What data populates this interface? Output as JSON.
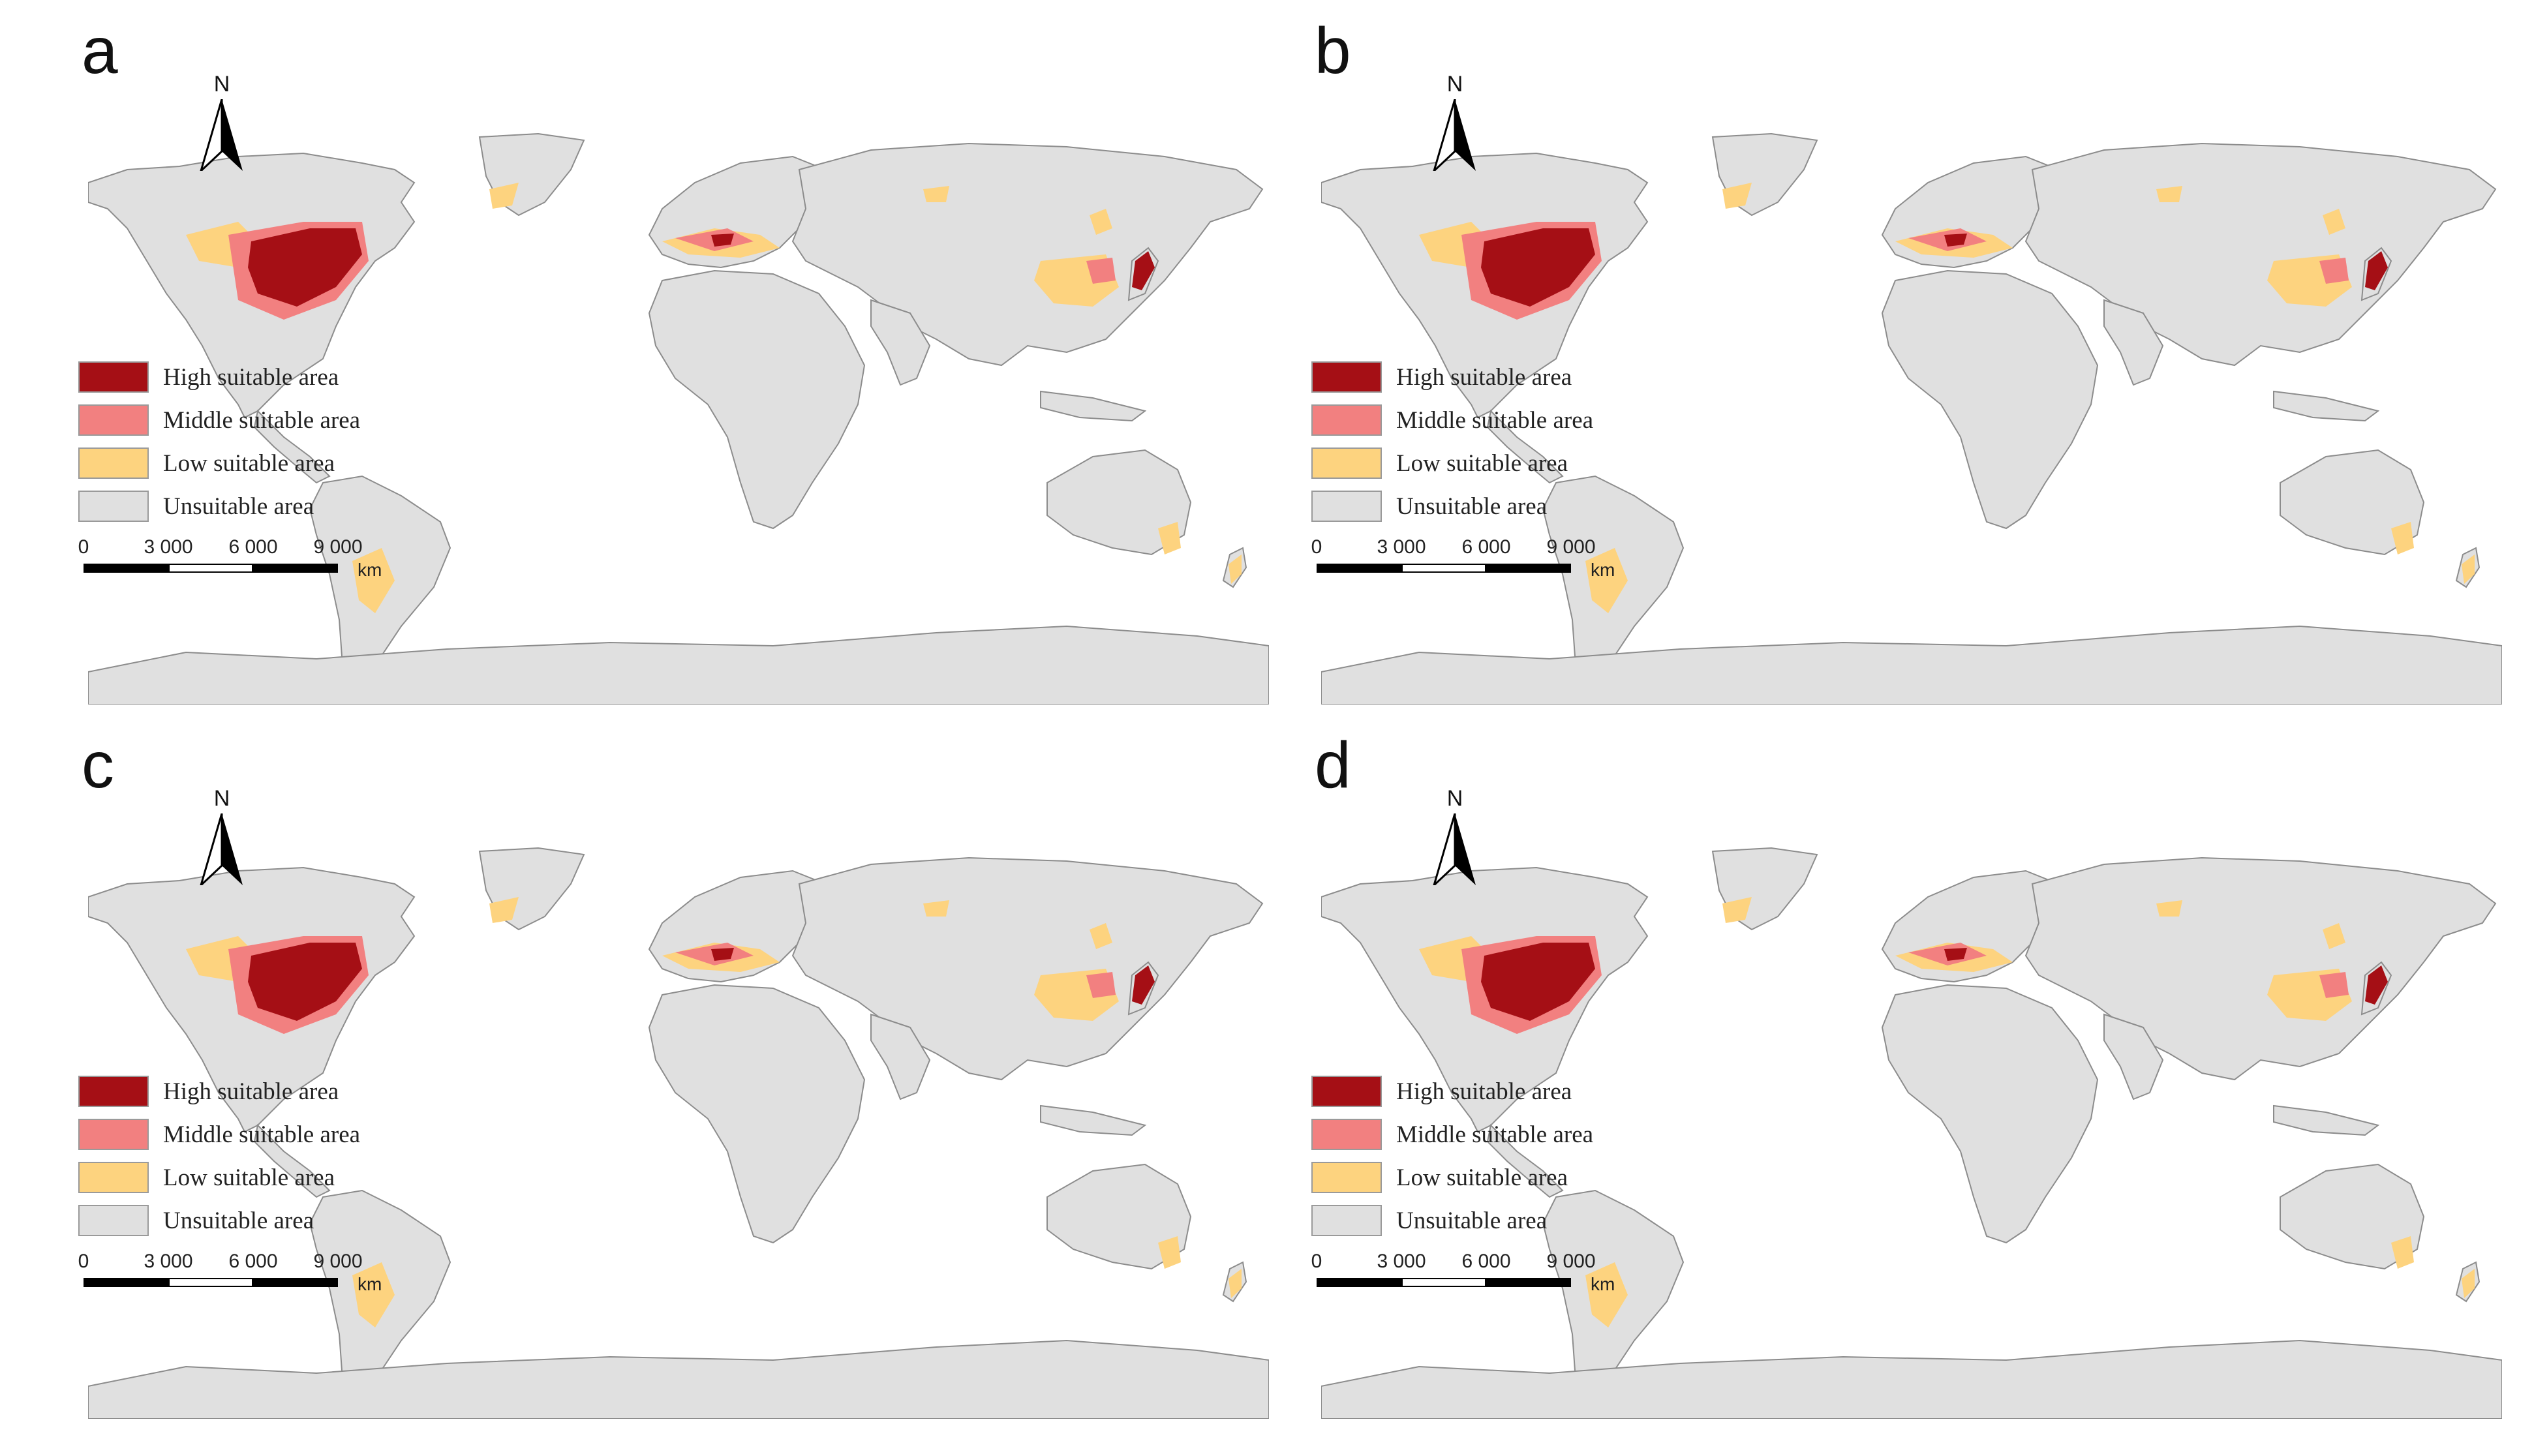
{
  "figure": {
    "panels": [
      {
        "id": "a",
        "label": "a"
      },
      {
        "id": "b",
        "label": "b"
      },
      {
        "id": "c",
        "label": "c"
      },
      {
        "id": "d",
        "label": "d"
      }
    ],
    "north_label": "N",
    "legend": [
      {
        "label": "High suitable area",
        "color": "#a50f15"
      },
      {
        "label": "Middle suitable area",
        "color": "#f28080"
      },
      {
        "label": "Low suitable area",
        "color": "#fdd37f"
      },
      {
        "label": "Unsuitable area",
        "color": "#e0e0e0"
      }
    ],
    "scale": {
      "ticks": [
        "0",
        "3 000",
        "6 000",
        "9 000"
      ],
      "unit": "km"
    },
    "colors": {
      "land": "#e0e0e0",
      "border": "#8c8c8c",
      "ocean": "#ffffff"
    }
  }
}
